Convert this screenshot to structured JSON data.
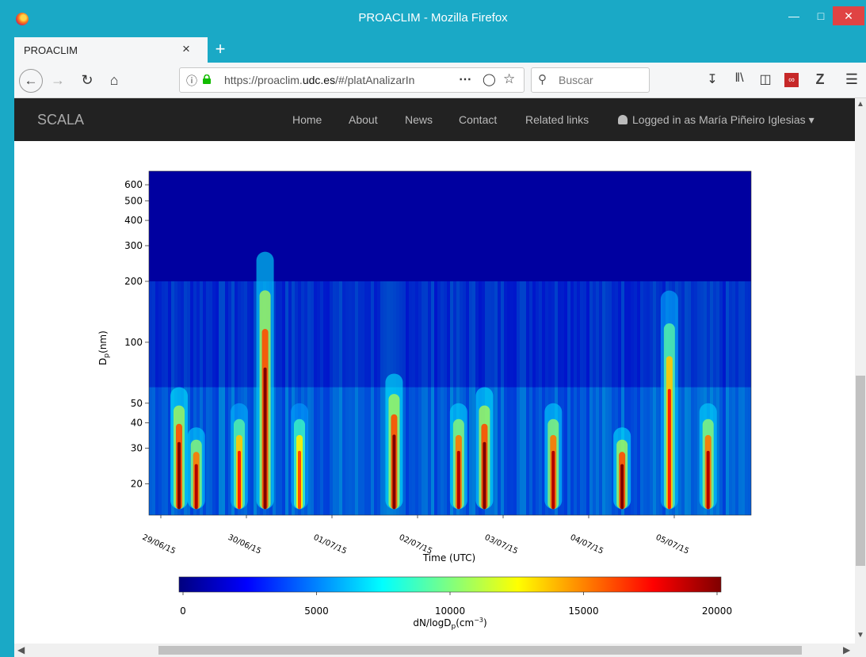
{
  "window": {
    "title": "PROACLIM - Mozilla Firefox"
  },
  "tab": {
    "label": "PROACLIM"
  },
  "urlbar": {
    "prefix": "https://proaclim.",
    "domain": "udc.es",
    "path": "/#/platAnalizarIn"
  },
  "search": {
    "placeholder": "Buscar"
  },
  "site": {
    "brand": "SCALA",
    "nav": [
      "Home",
      "About",
      "News",
      "Contact",
      "Related links"
    ],
    "user": "Logged in as María Piñeiro Iglesias"
  },
  "colors": {
    "navbar_bg": "#222222",
    "titlebar_bg": "#1aa9c6",
    "close_btn": "#e04343"
  },
  "icons": [
    "firefox-logo-icon",
    "back-arrow-icon",
    "forward-arrow-icon",
    "reload-icon",
    "home-icon",
    "info-icon",
    "lock-icon",
    "pocket-icon",
    "star-icon",
    "search-icon",
    "download-icon",
    "library-icon",
    "sidebar-icon",
    "menu-icon",
    "user-icon"
  ],
  "chart_data": {
    "type": "heatmap",
    "xlabel": "Time (UTC)",
    "ylabel": "Dp(nm)",
    "x_ticks": [
      "29/06/15",
      "30/06/15",
      "01/07/15",
      "02/07/15",
      "03/07/15",
      "04/07/15",
      "05/07/15"
    ],
    "y_ticks": [
      20,
      30,
      40,
      50,
      100,
      200,
      300,
      400,
      500,
      600
    ],
    "y_scale": "log",
    "ylim": [
      14,
      700
    ],
    "colorbar": {
      "label": "dN/logDp(cm-3)",
      "ticks": [
        0,
        5000,
        10000,
        15000,
        20000
      ],
      "range": [
        0,
        20000
      ],
      "colormap": "jet"
    },
    "events": [
      {
        "day": 0.35,
        "dmin": 15,
        "dmax": 60,
        "peak": 20000
      },
      {
        "day": 0.55,
        "dmin": 15,
        "dmax": 38,
        "peak": 19000
      },
      {
        "day": 1.05,
        "dmin": 15,
        "dmax": 50,
        "peak": 17000
      },
      {
        "day": 1.35,
        "dmin": 15,
        "dmax": 280,
        "peak": 20000
      },
      {
        "day": 1.75,
        "dmin": 15,
        "dmax": 50,
        "peak": 16000
      },
      {
        "day": 2.85,
        "dmin": 15,
        "dmax": 70,
        "peak": 20000
      },
      {
        "day": 3.6,
        "dmin": 15,
        "dmax": 50,
        "peak": 19000
      },
      {
        "day": 3.9,
        "dmin": 15,
        "dmax": 60,
        "peak": 20000
      },
      {
        "day": 4.7,
        "dmin": 15,
        "dmax": 50,
        "peak": 19000
      },
      {
        "day": 5.5,
        "dmin": 15,
        "dmax": 38,
        "peak": 20000
      },
      {
        "day": 6.05,
        "dmin": 15,
        "dmax": 180,
        "peak": 17000
      },
      {
        "day": 6.5,
        "dmin": 15,
        "dmax": 50,
        "peak": 19000
      }
    ]
  }
}
